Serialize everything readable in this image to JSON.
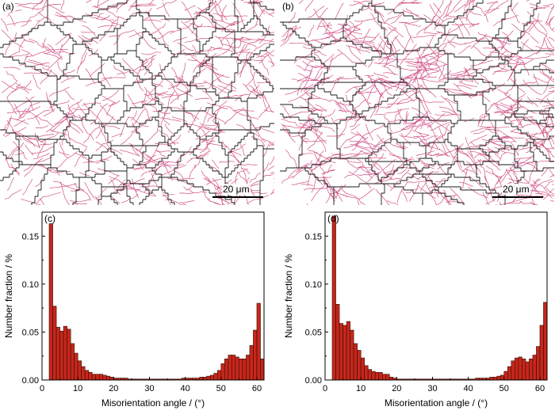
{
  "micrographs": {
    "a": {
      "label": "(a)",
      "scale_label": "20 μm"
    },
    "b": {
      "label": "(b)",
      "scale_label": "20 μm"
    }
  },
  "colors": {
    "bar_fill": "#c8261b",
    "bar_stroke": "#2a1008",
    "high_angle_boundary": "#1a1a1a",
    "low_angle_boundary": "#c2185b"
  },
  "chart_data": [
    {
      "type": "bar",
      "panel_label": "(c)",
      "xlabel": "Misorientation angle / (°)",
      "ylabel": "Number fraction / %",
      "xlim": [
        0,
        62
      ],
      "ylim": [
        0,
        0.175
      ],
      "xticks": [
        "0",
        "10",
        "20",
        "30",
        "40",
        "50",
        "60"
      ],
      "yticks": [
        "0.00",
        "0.05",
        "0.10",
        "0.15"
      ],
      "bin_width": 1,
      "x": [
        2,
        3,
        4,
        5,
        6,
        7,
        8,
        9,
        10,
        11,
        12,
        13,
        14,
        15,
        16,
        17,
        18,
        19,
        20,
        21,
        22,
        23,
        24,
        25,
        26,
        27,
        28,
        29,
        30,
        31,
        32,
        33,
        34,
        35,
        36,
        37,
        38,
        39,
        40,
        41,
        42,
        43,
        44,
        45,
        46,
        47,
        48,
        49,
        50,
        51,
        52,
        53,
        54,
        55,
        56,
        57,
        58,
        59,
        60,
        61
      ],
      "values": [
        0.163,
        0.077,
        0.055,
        0.051,
        0.056,
        0.053,
        0.038,
        0.028,
        0.02,
        0.014,
        0.01,
        0.008,
        0.006,
        0.006,
        0.006,
        0.005,
        0.004,
        0.003,
        0.002,
        0.002,
        0.002,
        0.002,
        0.001,
        0.001,
        0.001,
        0.001,
        0.001,
        0.001,
        0.001,
        0.001,
        0.001,
        0.001,
        0.001,
        0.001,
        0.001,
        0.001,
        0.001,
        0.002,
        0.002,
        0.002,
        0.002,
        0.002,
        0.003,
        0.003,
        0.004,
        0.005,
        0.007,
        0.01,
        0.017,
        0.022,
        0.026,
        0.026,
        0.024,
        0.022,
        0.022,
        0.026,
        0.036,
        0.052,
        0.08,
        0.022
      ]
    },
    {
      "type": "bar",
      "panel_label": "(d)",
      "xlabel": "Misorientation angle / (°)",
      "ylabel": "Number fraction / %",
      "xlim": [
        0,
        62
      ],
      "ylim": [
        0,
        0.175
      ],
      "xticks": [
        "0",
        "10",
        "20",
        "30",
        "40",
        "50",
        "60"
      ],
      "yticks": [
        "0.00",
        "0.05",
        "0.10",
        "0.15"
      ],
      "bin_width": 1,
      "x": [
        2,
        3,
        4,
        5,
        6,
        7,
        8,
        9,
        10,
        11,
        12,
        13,
        14,
        15,
        16,
        17,
        18,
        19,
        20,
        21,
        22,
        23,
        24,
        25,
        26,
        27,
        28,
        29,
        30,
        31,
        32,
        33,
        34,
        35,
        36,
        37,
        38,
        39,
        40,
        41,
        42,
        43,
        44,
        45,
        46,
        47,
        48,
        49,
        50,
        51,
        52,
        53,
        54,
        55,
        56,
        57,
        58,
        59,
        60,
        61
      ],
      "values": [
        0.171,
        0.079,
        0.059,
        0.057,
        0.061,
        0.052,
        0.038,
        0.031,
        0.023,
        0.015,
        0.011,
        0.009,
        0.008,
        0.008,
        0.006,
        0.006,
        0.003,
        0.002,
        0.001,
        0.001,
        0.001,
        0.001,
        0.001,
        0.001,
        0.001,
        0.001,
        0.001,
        0.001,
        0.001,
        0.001,
        0.001,
        0.001,
        0.001,
        0.001,
        0.001,
        0.001,
        0.001,
        0.001,
        0.001,
        0.001,
        0.002,
        0.002,
        0.002,
        0.002,
        0.003,
        0.003,
        0.004,
        0.005,
        0.009,
        0.014,
        0.02,
        0.023,
        0.024,
        0.022,
        0.019,
        0.022,
        0.026,
        0.035,
        0.057,
        0.081
      ]
    }
  ]
}
